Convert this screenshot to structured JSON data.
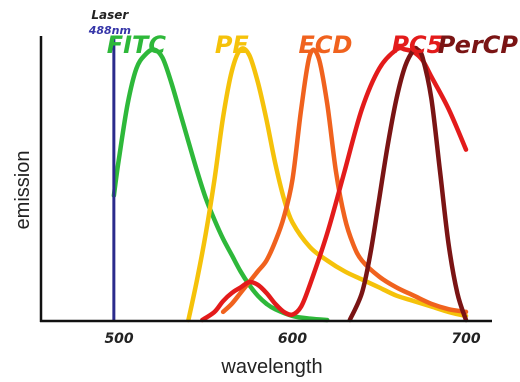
{
  "chart_data": {
    "type": "line",
    "title": "",
    "xlabel": "wavelength",
    "ylabel": "emission",
    "xlim": [
      455,
      715
    ],
    "ylim": [
      0,
      1.05
    ],
    "x_ticks": [
      {
        "value": 500,
        "label": "500"
      },
      {
        "value": 600,
        "label": "600"
      },
      {
        "value": 700,
        "label": "700"
      }
    ],
    "grid": false,
    "laser": {
      "name": "Laser",
      "wavelength_label": "488nm",
      "x": 497,
      "color": "#2b2b8c"
    },
    "series": [
      {
        "name": "FITC",
        "color": "#2eb83a",
        "label_color": "#2eb83a",
        "label_x": 510,
        "x": [
          497,
          500,
          505,
          510,
          515,
          520,
          525,
          530,
          535,
          540,
          545,
          550,
          555,
          560,
          565,
          570,
          575,
          580,
          585,
          590,
          600,
          610,
          620
        ],
        "y": [
          0.46,
          0.6,
          0.8,
          0.93,
          0.98,
          1.0,
          0.97,
          0.88,
          0.77,
          0.66,
          0.55,
          0.45,
          0.37,
          0.3,
          0.24,
          0.18,
          0.13,
          0.09,
          0.06,
          0.04,
          0.015,
          0.005,
          0.0
        ]
      },
      {
        "name": "PE",
        "color": "#f5c20a",
        "label_color": "#f5c20a",
        "label_x": 565,
        "x": [
          540,
          545,
          550,
          555,
          560,
          565,
          570,
          575,
          580,
          585,
          590,
          595,
          600,
          610,
          620,
          630,
          640,
          650,
          660,
          670,
          680,
          690,
          700
        ],
        "y": [
          0.0,
          0.15,
          0.32,
          0.52,
          0.75,
          0.92,
          1.0,
          0.98,
          0.88,
          0.74,
          0.58,
          0.45,
          0.36,
          0.27,
          0.22,
          0.18,
          0.15,
          0.12,
          0.09,
          0.07,
          0.05,
          0.03,
          0.015
        ]
      },
      {
        "name": "ECD",
        "color": "#f0621e",
        "label_color": "#f0621e",
        "label_x": 619,
        "x": [
          560,
          565,
          570,
          575,
          580,
          585,
          590,
          595,
          600,
          605,
          610,
          615,
          620,
          625,
          630,
          635,
          640,
          650,
          660,
          670,
          680,
          690,
          700
        ],
        "y": [
          0.03,
          0.06,
          0.1,
          0.14,
          0.18,
          0.22,
          0.29,
          0.38,
          0.52,
          0.78,
          0.98,
          0.97,
          0.8,
          0.55,
          0.38,
          0.28,
          0.22,
          0.16,
          0.12,
          0.09,
          0.06,
          0.04,
          0.03
        ]
      },
      {
        "name": "PC5",
        "color": "#e31b1b",
        "label_color": "#e31b1b",
        "label_x": 672,
        "x": [
          548,
          555,
          560,
          565,
          570,
          575,
          580,
          585,
          590,
          595,
          600,
          605,
          610,
          620,
          630,
          640,
          650,
          660,
          665,
          670,
          675,
          680,
          690,
          700
        ],
        "y": [
          0.0,
          0.03,
          0.07,
          0.1,
          0.12,
          0.14,
          0.13,
          0.1,
          0.06,
          0.03,
          0.02,
          0.05,
          0.13,
          0.32,
          0.55,
          0.78,
          0.93,
          1.0,
          1.0,
          0.99,
          0.96,
          0.9,
          0.78,
          0.63
        ]
      },
      {
        "name": "PerCP",
        "color": "#7a1414",
        "label_color": "#7a1414",
        "label_x": 730,
        "x": [
          633,
          640,
          645,
          650,
          655,
          660,
          665,
          670,
          672,
          675,
          680,
          685,
          690,
          695,
          700
        ],
        "y": [
          0.0,
          0.1,
          0.25,
          0.45,
          0.65,
          0.82,
          0.94,
          1.0,
          1.0,
          0.97,
          0.82,
          0.55,
          0.28,
          0.1,
          0.0
        ]
      }
    ]
  }
}
